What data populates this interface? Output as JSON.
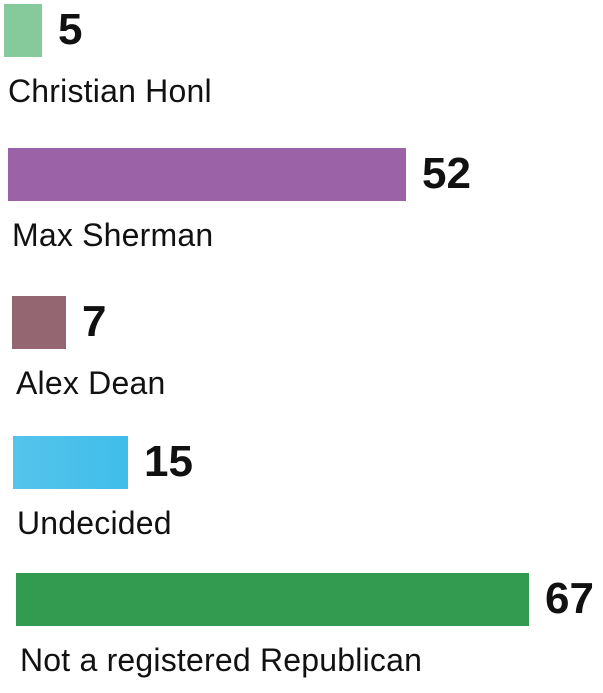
{
  "chart_data": {
    "type": "bar",
    "orientation": "horizontal",
    "title": "",
    "xlabel": "",
    "ylabel": "",
    "grid": false,
    "legend": "none",
    "categories": [
      "Christian Honl",
      "Max Sherman",
      "Alex Dean",
      "Undecided",
      "Not a registered Republican"
    ],
    "values": [
      5,
      52,
      7,
      15,
      67
    ],
    "value_labels": [
      "5",
      "52",
      "7",
      "15",
      "67"
    ],
    "colors": [
      "#86C99A",
      "#9B62A8",
      "#946671",
      "#4CC0EA",
      "#339B4F"
    ],
    "xlim": [
      0,
      67
    ]
  }
}
